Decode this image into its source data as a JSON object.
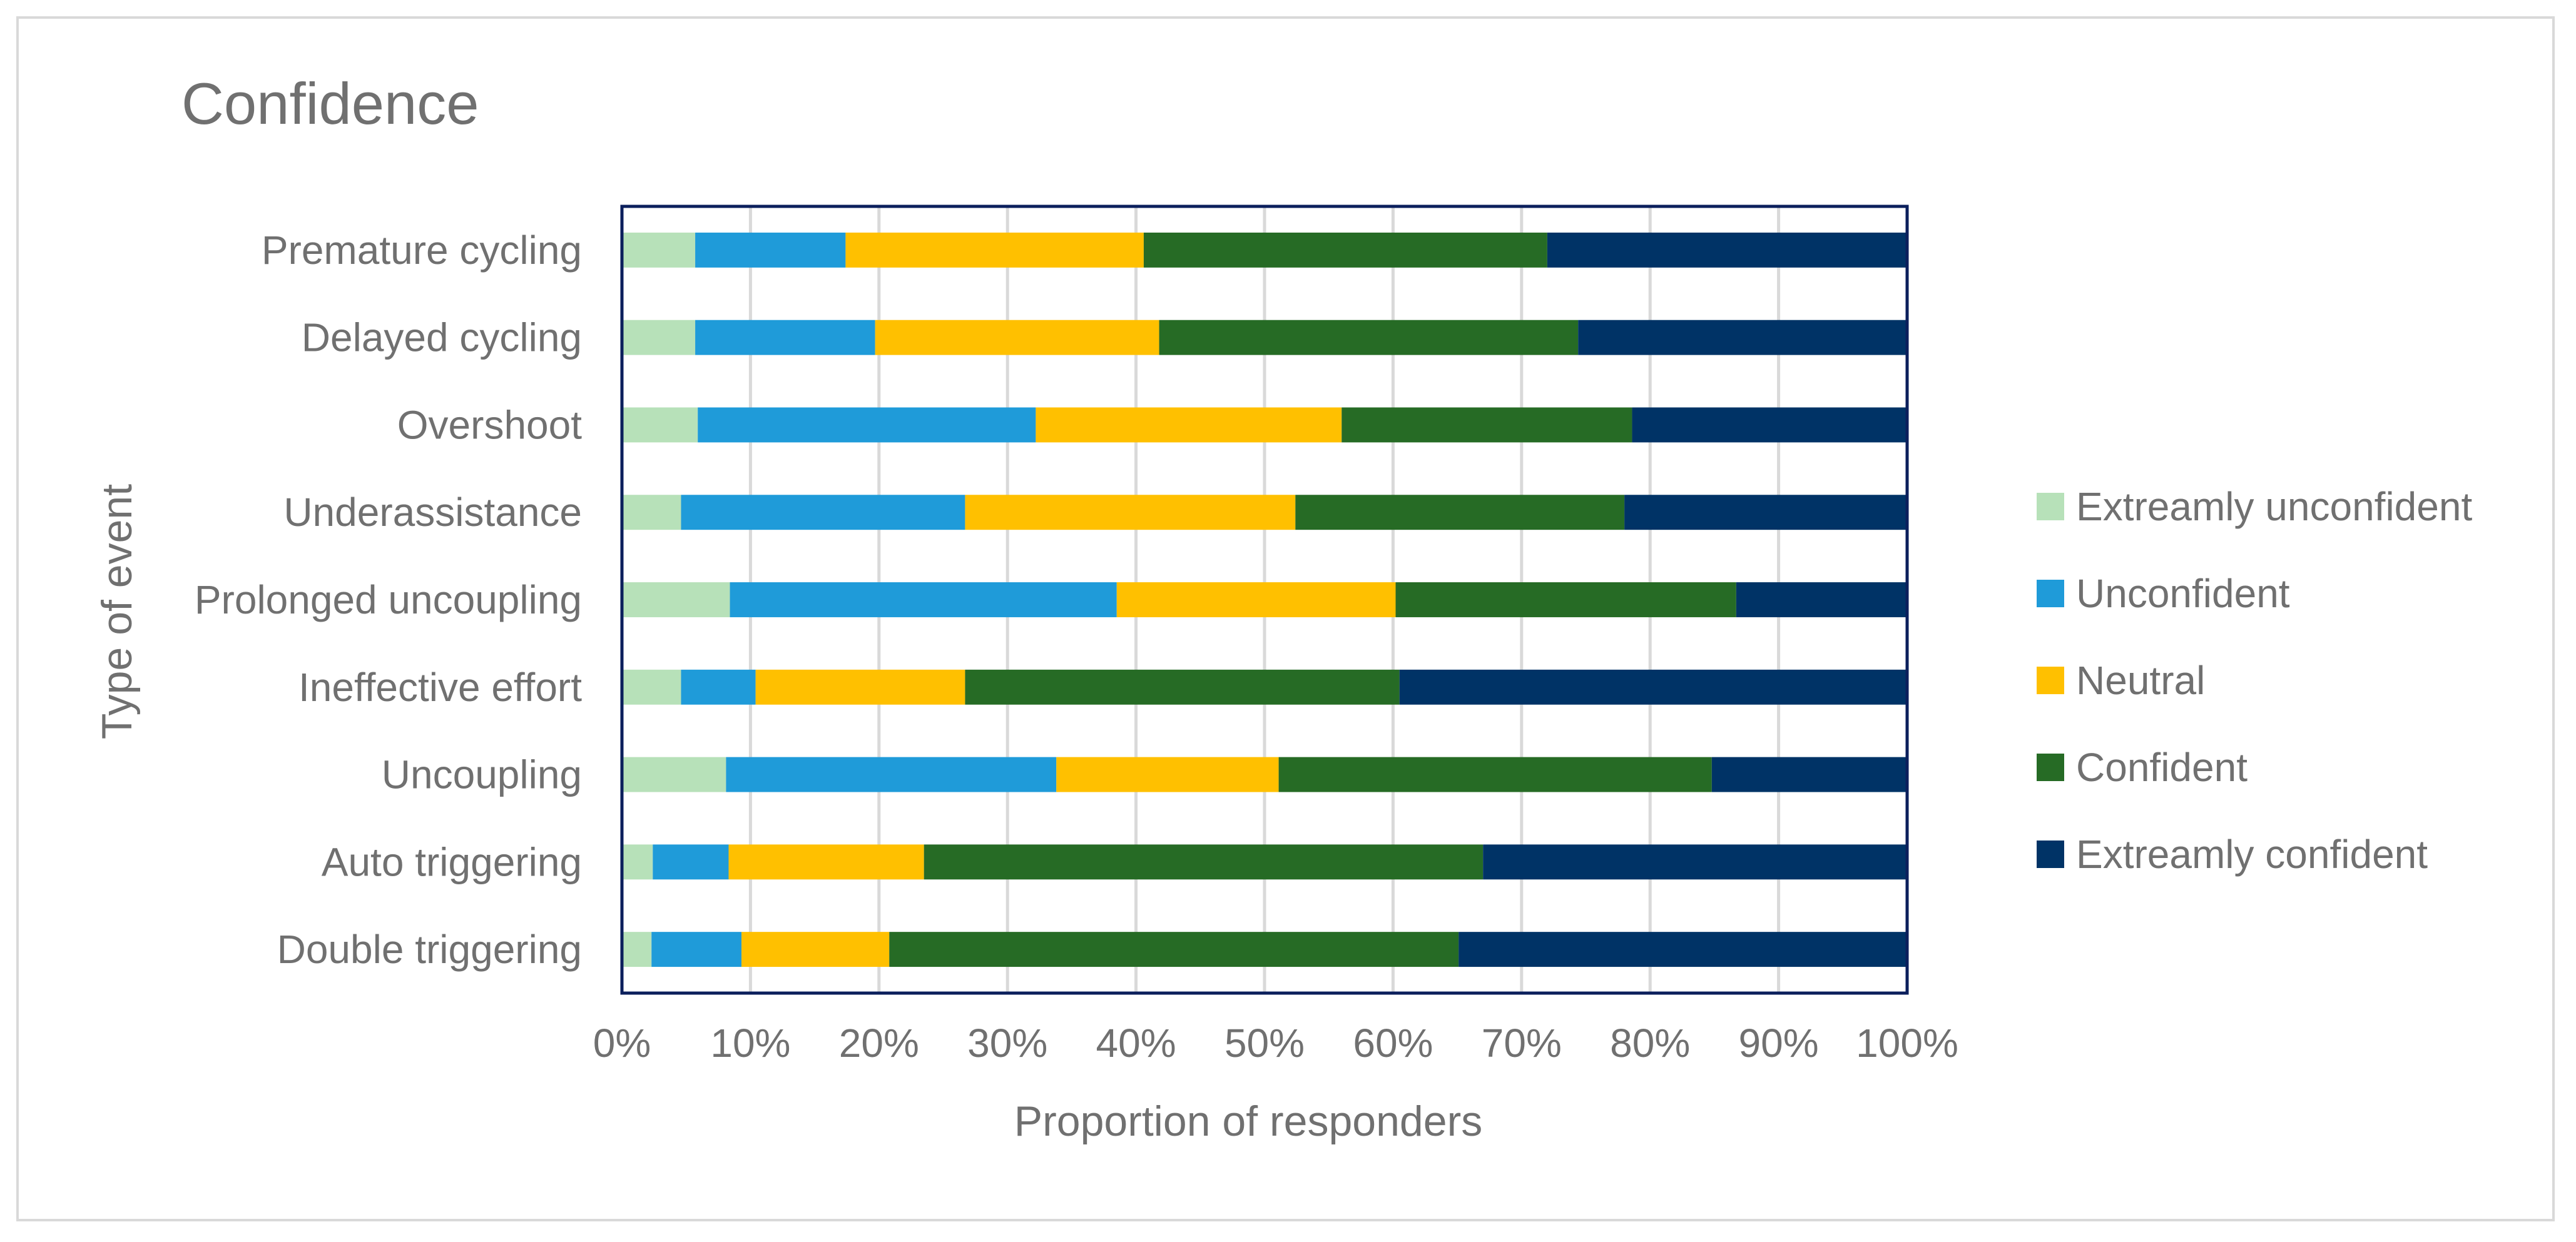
{
  "chart_data": {
    "type": "bar",
    "orientation": "horizontal",
    "stacked": "percent",
    "title": "Confidence",
    "xlabel": "Proportion of responders",
    "ylabel": "Type of event",
    "xlim": [
      0,
      100
    ],
    "x_ticks": [
      "0%",
      "10%",
      "20%",
      "30%",
      "40%",
      "50%",
      "60%",
      "70%",
      "80%",
      "90%",
      "100%"
    ],
    "grid": "vertical",
    "legend_position": "right",
    "categories": [
      "Premature cycling",
      "Delayed cycling",
      "Overshoot",
      "Underassistance",
      "Prolonged uncoupling",
      "Ineffective effort",
      "Uncoupling ",
      "Auto triggering",
      "Double triggering"
    ],
    "series": [
      {
        "name": "Extreamly unconfident",
        "color": "#b7e1b9",
        "values": [
          5.7,
          5.7,
          5.9,
          4.6,
          8.4,
          4.6,
          8.1,
          2.4,
          2.3
        ]
      },
      {
        "name": "Unconfident",
        "color": "#1f9bd9",
        "values": [
          11.7,
          14.0,
          26.3,
          22.1,
          30.1,
          5.8,
          25.7,
          5.9,
          7.0
        ]
      },
      {
        "name": "Neutral",
        "color": "#ffc000",
        "values": [
          23.2,
          22.1,
          23.8,
          25.7,
          21.7,
          16.3,
          17.3,
          15.2,
          11.5
        ]
      },
      {
        "name": "Confident",
        "color": "#266b25",
        "values": [
          31.4,
          32.6,
          22.6,
          25.6,
          26.5,
          33.8,
          33.7,
          43.5,
          44.3
        ]
      },
      {
        "name": "Extreamly confident",
        "color": "#003366",
        "values": [
          28.0,
          25.6,
          21.4,
          22.0,
          13.3,
          39.5,
          15.2,
          33.0,
          34.9
        ]
      }
    ]
  }
}
